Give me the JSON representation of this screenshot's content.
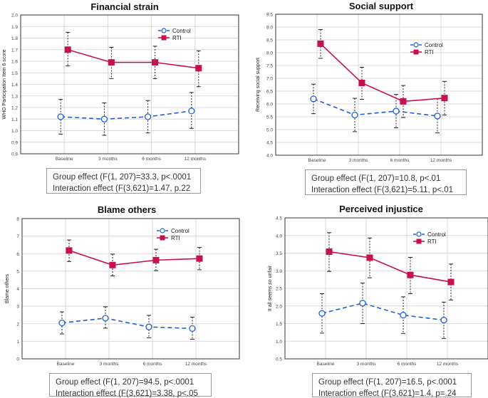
{
  "colors": {
    "control": "#1f5fd6",
    "rti": "#c8104f",
    "grid": "#d8d8d8",
    "axis": "#333333"
  },
  "legend": {
    "control": "Control",
    "rti": "RTI"
  },
  "chart_data": [
    {
      "type": "line",
      "title": "Financial strain",
      "xlabel": "",
      "ylabel": "WHO Participation Item 6 score",
      "categories": [
        "Baseline",
        "3 months",
        "6 months",
        "12 months"
      ],
      "ylim": [
        0.8,
        2.0
      ],
      "yticks": [
        "0.8",
        "0.9",
        "1.0",
        "1.1",
        "1.2",
        "1.3",
        "1.4",
        "1.5",
        "1.6",
        "1.7",
        "1.8",
        "1.9",
        "2.0"
      ],
      "grid": true,
      "legend_position": "top-right",
      "series": [
        {
          "name": "Control",
          "values": [
            1.12,
            1.1,
            1.12,
            1.17
          ],
          "ci_low": [
            0.97,
            0.96,
            0.98,
            1.02
          ],
          "ci_high": [
            1.27,
            1.24,
            1.26,
            1.33
          ]
        },
        {
          "name": "RTI",
          "values": [
            1.7,
            1.59,
            1.59,
            1.54
          ],
          "ci_low": [
            1.56,
            1.45,
            1.45,
            1.38
          ],
          "ci_high": [
            1.85,
            1.72,
            1.73,
            1.69
          ]
        }
      ],
      "stats": [
        "Group effect (F(1, 207)=33.3, p<.0001",
        "Interaction effect (F(3,621)=1.47, p.22"
      ]
    },
    {
      "type": "line",
      "title": "Social support",
      "xlabel": "",
      "ylabel": "Receiving social support",
      "categories": [
        "Baseline",
        "3 months",
        "6 months",
        "12 months"
      ],
      "ylim": [
        4.0,
        9.5
      ],
      "yticks": [
        "4.0",
        "4.5",
        "5.0",
        "5.5",
        "6.0",
        "6.5",
        "7.0",
        "7.5",
        "8.0",
        "8.5",
        "9.0",
        "9.5"
      ],
      "grid": true,
      "legend_position": "top-right",
      "series": [
        {
          "name": "Control",
          "values": [
            6.2,
            5.57,
            5.72,
            5.53
          ],
          "ci_low": [
            5.62,
            4.92,
            5.07,
            4.87
          ],
          "ci_high": [
            6.77,
            6.22,
            6.37,
            6.2
          ]
        },
        {
          "name": "RTI",
          "values": [
            8.35,
            6.82,
            6.1,
            6.23
          ],
          "ci_low": [
            7.78,
            6.18,
            5.47,
            5.57
          ],
          "ci_high": [
            8.9,
            7.43,
            6.72,
            6.88
          ]
        }
      ],
      "stats": [
        "Group effect (F(1, 207)=10.8, p<.01",
        "Interaction effect (F(3,621)=5.11, p<.01"
      ]
    },
    {
      "type": "line",
      "title": "Blame others",
      "xlabel": "",
      "ylabel": "Blame others",
      "categories": [
        "Baseline",
        "3 months",
        "6 months",
        "12 months"
      ],
      "ylim": [
        0,
        8
      ],
      "yticks": [
        "0",
        "1",
        "2",
        "3",
        "4",
        "5",
        "6",
        "7",
        "8"
      ],
      "grid": true,
      "legend_position": "top-right",
      "series": [
        {
          "name": "Control",
          "values": [
            2.05,
            2.32,
            1.82,
            1.73
          ],
          "ci_low": [
            1.42,
            1.75,
            1.2,
            1.12
          ],
          "ci_high": [
            2.68,
            2.97,
            2.48,
            2.38
          ]
        },
        {
          "name": "RTI",
          "values": [
            6.18,
            5.35,
            5.63,
            5.72
          ],
          "ci_low": [
            5.55,
            4.73,
            5.03,
            5.08
          ],
          "ci_high": [
            6.78,
            5.97,
            6.25,
            6.35
          ]
        }
      ],
      "stats": [
        "Group effect (F(1, 207)=94.5, p<.0001",
        "Interaction effect (F(3,621)=3.38, p<.05"
      ]
    },
    {
      "type": "line",
      "title": "Perceived injustice",
      "xlabel": "",
      "ylabel": "It all seems so unfair",
      "categories": [
        "Baseline",
        "3 months",
        "6 months",
        "12 months"
      ],
      "ylim": [
        0.5,
        4.5
      ],
      "yticks": [
        "0.5",
        "1.0",
        "1.5",
        "2.0",
        "2.5",
        "3.0",
        "3.5",
        "4.0",
        "4.5"
      ],
      "grid": true,
      "legend_position": "top-right",
      "series": [
        {
          "name": "Control",
          "values": [
            1.79,
            2.08,
            1.74,
            1.6
          ],
          "ci_low": [
            1.23,
            1.5,
            1.22,
            1.08
          ],
          "ci_high": [
            2.35,
            2.65,
            2.26,
            2.11
          ]
        },
        {
          "name": "RTI",
          "values": [
            3.54,
            3.37,
            2.88,
            2.68
          ],
          "ci_low": [
            2.98,
            2.8,
            2.35,
            2.17
          ],
          "ci_high": [
            4.08,
            3.93,
            3.38,
            3.19
          ]
        }
      ],
      "stats": [
        "Group effect (F(1, 207)=16.5, p<.0001",
        "Interaction effect (F(3,621)=1.4, p=.24"
      ]
    }
  ]
}
